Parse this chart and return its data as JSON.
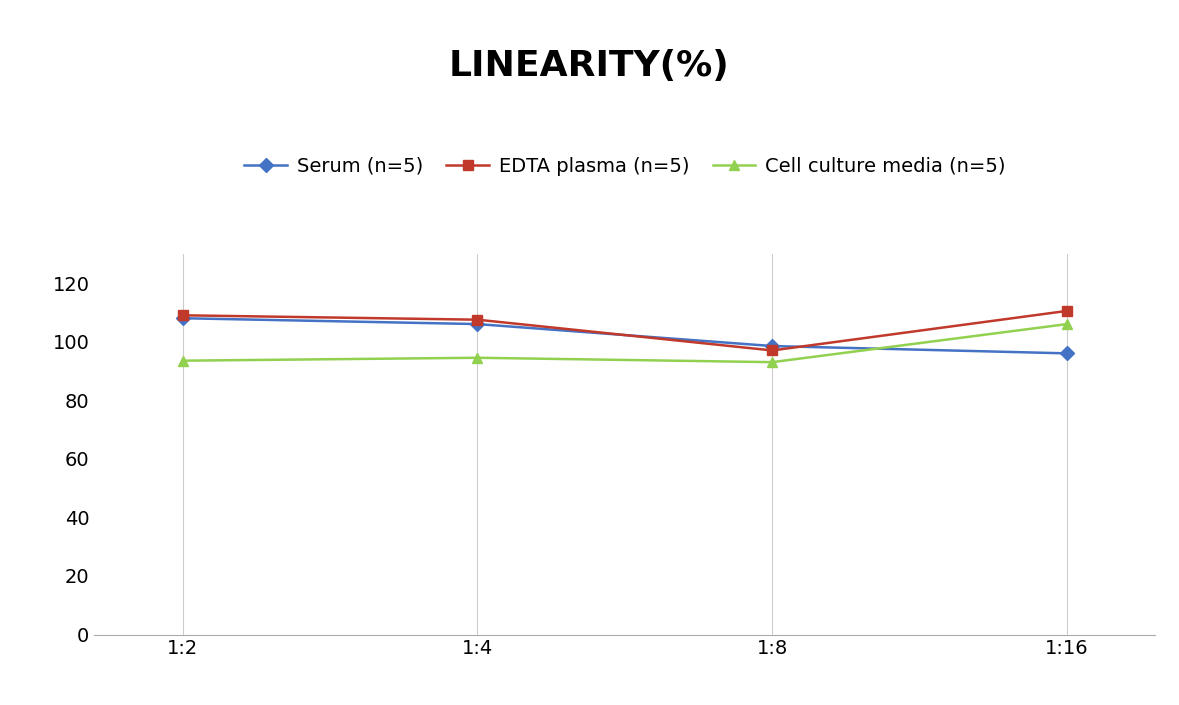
{
  "title": "LINEARITY(%)",
  "title_fontsize": 26,
  "title_fontweight": "bold",
  "x_labels": [
    "1:2",
    "1:4",
    "1:8",
    "1:16"
  ],
  "x_positions": [
    0,
    1,
    2,
    3
  ],
  "series": [
    {
      "label": "Serum (n=5)",
      "values": [
        108,
        106,
        98.5,
        96
      ],
      "color": "#4472C4",
      "marker": "D",
      "marker_size": 7,
      "linewidth": 1.8
    },
    {
      "label": "EDTA plasma (n=5)",
      "values": [
        109,
        107.5,
        97,
        110.5
      ],
      "color": "#C0392B",
      "marker": "s",
      "marker_size": 7,
      "linewidth": 1.8
    },
    {
      "label": "Cell culture media (n=5)",
      "values": [
        93.5,
        94.5,
        93,
        106
      ],
      "color": "#92D050",
      "marker": "^",
      "marker_size": 7,
      "linewidth": 1.8
    }
  ],
  "ylim": [
    0,
    130
  ],
  "yticks": [
    0,
    20,
    40,
    60,
    80,
    100,
    120
  ],
  "xlabel": "",
  "ylabel": "",
  "legend_ncol": 3,
  "legend_fontsize": 14,
  "tick_fontsize": 14,
  "grid_color": "#CCCCCC",
  "background_color": "#FFFFFF"
}
